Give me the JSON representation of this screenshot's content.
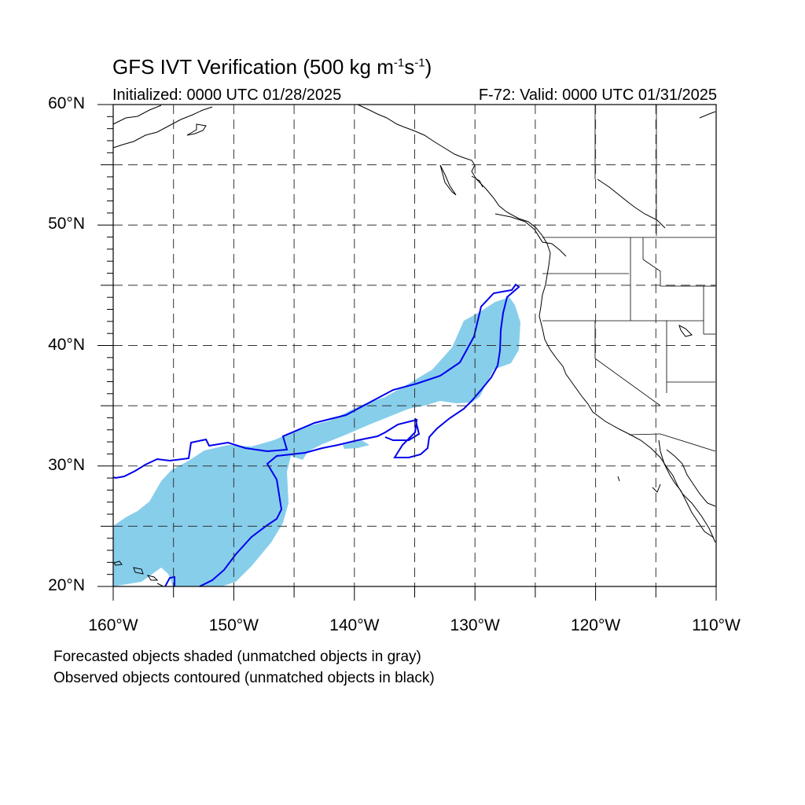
{
  "title": {
    "main": "GFS IVT Verification (500 kg m",
    "exp1": "-1",
    "mid": "s",
    "exp2": "-1",
    "end": ")"
  },
  "initialized": "Initialized: 0000 UTC 01/28/2025",
  "valid": "F-72: Valid: 0000 UTC 01/31/2025",
  "lat_labels": [
    "60°N",
    "50°N",
    "40°N",
    "30°N",
    "20°N"
  ],
  "lon_labels": [
    "160°W",
    "150°W",
    "140°W",
    "130°W",
    "120°W",
    "110°W"
  ],
  "caption_forecast": "Forecasted objects shaded (unmatched objects in gray)",
  "caption_observed": "Observed objects contoured (unmatched objects in black)",
  "colors": {
    "forecast_fill": "#87ceeb",
    "observed_contour": "#0000ee",
    "coastline": "#000000",
    "grid": "#333333"
  },
  "extent": {
    "lon_min": -160,
    "lon_max": -110,
    "lat_min": 20,
    "lat_max": 60
  }
}
